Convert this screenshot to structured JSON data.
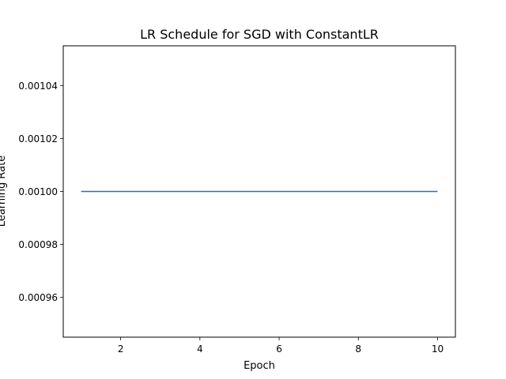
{
  "chart_data": {
    "type": "line",
    "title": "LR Schedule for SGD with ConstantLR",
    "xlabel": "Epoch",
    "ylabel": "Learning Rate",
    "x": [
      1,
      2,
      3,
      4,
      5,
      6,
      7,
      8,
      9,
      10
    ],
    "series": [
      {
        "values": [
          0.001,
          0.001,
          0.001,
          0.001,
          0.001,
          0.001,
          0.001,
          0.001,
          0.001,
          0.001
        ]
      }
    ],
    "xlim": [
      0.55,
      10.45
    ],
    "ylim": [
      0.000945,
      0.001055
    ],
    "xticks": [
      2,
      4,
      6,
      8,
      10
    ],
    "xtick_labels": [
      "2",
      "4",
      "6",
      "8",
      "10"
    ],
    "yticks": [
      0.00096,
      0.00098,
      0.001,
      0.00102,
      0.00104
    ],
    "ytick_labels": [
      "0.00096",
      "0.00098",
      "0.00100",
      "0.00102",
      "0.00104"
    ],
    "grid": false,
    "line_color": "#1f77b4"
  }
}
